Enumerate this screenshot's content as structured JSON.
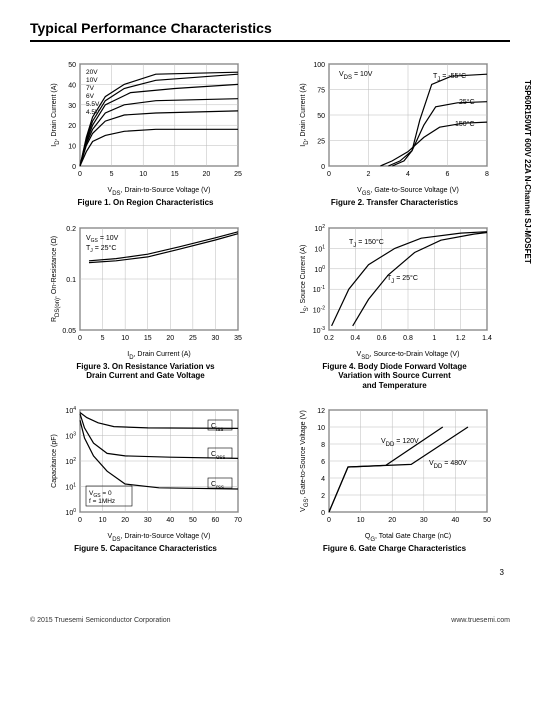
{
  "page": {
    "title": "Typical Performance Characteristics",
    "side_label": "TSP60R150WT 600V 22A N-Channel SJ-MOSFET",
    "page_number": "3",
    "footer_left": "© 2015  Truesemi  Semiconductor Corporation",
    "footer_right": "www.truesemi.com"
  },
  "fig1": {
    "caption_line": "Figure 1. On Region Characteristics",
    "xlabel": "V<tspan font-size='6' baseline-shift='sub'>DS</tspan>, Drain-to-Source Voltage (V)",
    "ylabel": "I<tspan font-size='6' baseline-shift='sub'>D</tspan>, Drain Current (A)",
    "xlim": [
      0,
      25
    ],
    "ylim": [
      0,
      50
    ],
    "xtick": 5,
    "ytick": 10,
    "labels": [
      "20V",
      "10V",
      "7V",
      "6V",
      "5.5V",
      "4.5V"
    ],
    "curves": [
      [
        [
          0,
          0
        ],
        [
          1,
          14
        ],
        [
          2,
          24
        ],
        [
          4,
          34
        ],
        [
          7,
          40
        ],
        [
          12,
          45
        ],
        [
          25,
          46
        ]
      ],
      [
        [
          0,
          0
        ],
        [
          1,
          13
        ],
        [
          2,
          22
        ],
        [
          4,
          32
        ],
        [
          7,
          38
        ],
        [
          12,
          42
        ],
        [
          25,
          45
        ]
      ],
      [
        [
          0,
          0
        ],
        [
          1,
          12
        ],
        [
          2,
          20
        ],
        [
          4,
          30
        ],
        [
          8,
          36
        ],
        [
          15,
          38
        ],
        [
          25,
          40
        ]
      ],
      [
        [
          0,
          0
        ],
        [
          1,
          11
        ],
        [
          2,
          18
        ],
        [
          4,
          26
        ],
        [
          7,
          30
        ],
        [
          12,
          32
        ],
        [
          25,
          33
        ]
      ],
      [
        [
          0,
          0
        ],
        [
          1,
          10
        ],
        [
          2,
          16
        ],
        [
          4,
          22
        ],
        [
          7,
          25
        ],
        [
          12,
          26
        ],
        [
          25,
          27
        ]
      ],
      [
        [
          0,
          0
        ],
        [
          1,
          7
        ],
        [
          2,
          12
        ],
        [
          4,
          15
        ],
        [
          7,
          17
        ],
        [
          12,
          18
        ],
        [
          25,
          18
        ]
      ]
    ],
    "grid_color": "#aaa"
  },
  "fig2": {
    "caption_line": "Figure 2. Transfer Characteristics",
    "xlabel": "V<tspan font-size='6' baseline-shift='sub'>GS</tspan>, Gate-to-Source Voltage (V)",
    "ylabel": "I<tspan font-size='6' baseline-shift='sub'>D</tspan>, Drain Current (A)",
    "xlim": [
      0,
      8
    ],
    "ylim": [
      0,
      100
    ],
    "xtick": 2,
    "ytick": 25,
    "annot1": "V<tspan font-size='6' baseline-shift='sub'>DS</tspan> = 10V",
    "labels": [
      "T<tspan font-size='6' baseline-shift='sub'>J</tspan> = -55°C",
      "25°C",
      "150°C"
    ],
    "curves": [
      [
        [
          3.2,
          0
        ],
        [
          3.8,
          5
        ],
        [
          4.2,
          15
        ],
        [
          4.6,
          45
        ],
        [
          5.2,
          80
        ],
        [
          6.2,
          88
        ],
        [
          8,
          90
        ]
      ],
      [
        [
          3.0,
          0
        ],
        [
          3.6,
          5
        ],
        [
          4.2,
          15
        ],
        [
          4.8,
          40
        ],
        [
          5.4,
          58
        ],
        [
          6.5,
          62
        ],
        [
          8,
          63
        ]
      ],
      [
        [
          2.6,
          0
        ],
        [
          3.2,
          5
        ],
        [
          4.0,
          14
        ],
        [
          4.8,
          28
        ],
        [
          5.6,
          38
        ],
        [
          6.8,
          42
        ],
        [
          8,
          43
        ]
      ]
    ]
  },
  "fig3": {
    "caption": "Figure 3. On Resistance Variation vs\nDrain Current and Gate Voltage",
    "xlabel": "I<tspan font-size='6' baseline-shift='sub'>D</tspan>, Drain Current (A)",
    "ylabel": "R<tspan font-size='6' baseline-shift='sub'>DS(on)</tspan>, On-Resistance (Ω)",
    "annot": "V<tspan font-size='6' baseline-shift='sub'>GS</tspan> = 10V\nT<tspan font-size='6' baseline-shift='sub'>J</tspan> = 25°C",
    "xlim": [
      0,
      35
    ],
    "ylim_ticks": [
      0.05,
      0.1,
      0.2
    ],
    "xtick": 5,
    "curves": [
      [
        [
          2,
          0.128
        ],
        [
          8,
          0.132
        ],
        [
          15,
          0.14
        ],
        [
          22,
          0.155
        ],
        [
          30,
          0.175
        ],
        [
          35,
          0.19
        ]
      ],
      [
        [
          2,
          0.125
        ],
        [
          8,
          0.128
        ],
        [
          15,
          0.135
        ],
        [
          22,
          0.15
        ],
        [
          30,
          0.17
        ],
        [
          35,
          0.185
        ]
      ]
    ]
  },
  "fig4": {
    "caption": "Figure 4. Body Diode Forward Voltage\nVariation with Source Current\nand Temperature",
    "xlabel": "V<tspan font-size='6' baseline-shift='sub'>SD</tspan>, Source-to-Drain Voltage (V)",
    "ylabel": "I<tspan font-size='6' baseline-shift='sub'>S</tspan>, Source Current (A)",
    "xlim": [
      0.2,
      1.4
    ],
    "ylim_log": [
      -3,
      2
    ],
    "xtick": 0.2,
    "labels": [
      "T<tspan font-size='6' baseline-shift='sub'>J</tspan> = 150°C",
      "T<tspan font-size='6' baseline-shift='sub'>J</tspan> = 25°C"
    ],
    "curves": [
      [
        [
          0.22,
          -2.8
        ],
        [
          0.35,
          -1
        ],
        [
          0.5,
          0.2
        ],
        [
          0.7,
          1
        ],
        [
          0.9,
          1.5
        ],
        [
          1.2,
          1.75
        ],
        [
          1.4,
          1.82
        ]
      ],
      [
        [
          0.38,
          -2.8
        ],
        [
          0.5,
          -1.5
        ],
        [
          0.65,
          -0.3
        ],
        [
          0.85,
          0.8
        ],
        [
          1.05,
          1.4
        ],
        [
          1.3,
          1.7
        ],
        [
          1.4,
          1.78
        ]
      ]
    ]
  },
  "fig5": {
    "caption": "Figure 5. Capacitance Characteristics",
    "xlabel": "V<tspan font-size='6' baseline-shift='sub'>DS</tspan>, Drain-to-Source Voltage (V)",
    "ylabel": "Capacitance (pF)",
    "annot": "V<tspan font-size='6' baseline-shift='sub'>GS</tspan> = 0\nf = 1MHz",
    "xlim": [
      0,
      70
    ],
    "ylim_log": [
      0,
      4
    ],
    "xtick": 10,
    "labels": [
      "C<tspan font-size='6' baseline-shift='sub'>iss</tspan>",
      "C<tspan font-size='6' baseline-shift='sub'>oss</tspan>",
      "C<tspan font-size='6' baseline-shift='sub'>rss</tspan>"
    ],
    "curves": [
      [
        [
          0,
          3.9
        ],
        [
          3,
          3.7
        ],
        [
          8,
          3.5
        ],
        [
          15,
          3.35
        ],
        [
          30,
          3.3
        ],
        [
          70,
          3.28
        ]
      ],
      [
        [
          0,
          3.85
        ],
        [
          2,
          3.3
        ],
        [
          6,
          2.7
        ],
        [
          12,
          2.3
        ],
        [
          20,
          2.2
        ],
        [
          40,
          2.15
        ],
        [
          70,
          2.1
        ]
      ],
      [
        [
          0,
          3.6
        ],
        [
          2,
          2.9
        ],
        [
          6,
          2.2
        ],
        [
          12,
          1.6
        ],
        [
          20,
          1.1
        ],
        [
          35,
          0.95
        ],
        [
          70,
          0.9
        ]
      ]
    ]
  },
  "fig6": {
    "caption": "Figure 6. Gate Charge Characteristics",
    "xlabel": "Q<tspan font-size='6' baseline-shift='sub'>G</tspan>, Total Gate Charge (nC)",
    "ylabel": "V<tspan font-size='6' baseline-shift='sub'>GS</tspan>, Gate-to-Source Voltage (V)",
    "xlim": [
      0,
      50
    ],
    "ylim": [
      0,
      12
    ],
    "xtick": 10,
    "ytick": 2,
    "labels": [
      "V<tspan font-size='6' baseline-shift='sub'>DD</tspan> = 120V",
      "V<tspan font-size='6' baseline-shift='sub'>DD</tspan> = 480V"
    ],
    "curves": [
      [
        [
          0,
          0
        ],
        [
          6,
          5.3
        ],
        [
          18,
          5.5
        ],
        [
          36,
          10
        ]
      ],
      [
        [
          0,
          0
        ],
        [
          6,
          5.3
        ],
        [
          26,
          5.6
        ],
        [
          44,
          10
        ]
      ]
    ]
  }
}
